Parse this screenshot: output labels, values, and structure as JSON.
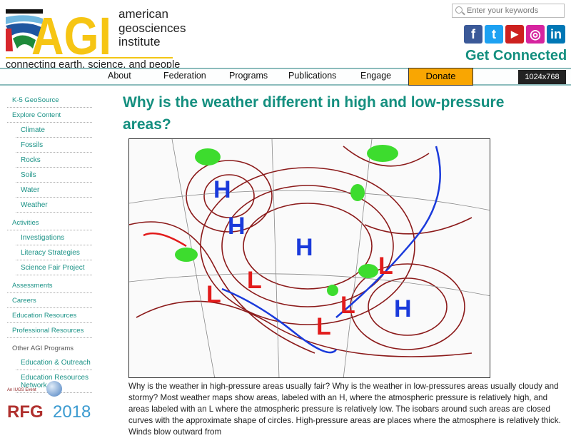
{
  "logo": {
    "letters": "AGI",
    "name_lines": [
      "american",
      "geosciences",
      "institute"
    ],
    "tagline": "connecting earth, science, and people"
  },
  "search": {
    "placeholder": "Enter your keywords"
  },
  "social": [
    {
      "name": "facebook",
      "glyph": "f",
      "color": "#3b5998"
    },
    {
      "name": "twitter",
      "glyph": "t",
      "color": "#1da1f2"
    },
    {
      "name": "youtube",
      "glyph": "▶",
      "color": "#cd201f"
    },
    {
      "name": "instagram",
      "glyph": "◎",
      "color": "#d6249f"
    },
    {
      "name": "linkedin",
      "glyph": "in",
      "color": "#0077b5"
    }
  ],
  "get_connected": "Get Connected",
  "nav": {
    "items": [
      "About",
      "Federation",
      "Programs",
      "Publications",
      "Engage"
    ],
    "donate": "Donate"
  },
  "sidebar": [
    {
      "label": "K-5 GeoSource",
      "level": 0
    },
    {
      "label": "Explore Content",
      "level": 0
    },
    {
      "label": "Climate",
      "level": 1
    },
    {
      "label": "Fossils",
      "level": 1
    },
    {
      "label": "Rocks",
      "level": 1
    },
    {
      "label": "Soils",
      "level": 1
    },
    {
      "label": "Water",
      "level": 1
    },
    {
      "label": "Weather",
      "level": 1
    },
    {
      "label": "Activities",
      "level": 0
    },
    {
      "label": "Investigations",
      "level": 1
    },
    {
      "label": "Literacy Strategies",
      "level": 1
    },
    {
      "label": "Science Fair Project",
      "level": 1
    },
    {
      "label": "Assessments",
      "level": 0
    },
    {
      "label": "Careers",
      "level": 0
    },
    {
      "label": "Education Resources",
      "level": 0
    },
    {
      "label": "Professional Resources",
      "level": 0
    },
    {
      "label": "Other AGI Programs",
      "level": 0,
      "heading": true
    },
    {
      "label": "Education & Outreach",
      "level": 1
    },
    {
      "label": "Education Resources Network",
      "level": 1
    }
  ],
  "title": "Why is the weather different in high and low-pressure areas?",
  "map_labels": {
    "high": "H",
    "low": "L",
    "high_color": "#1a3adb",
    "low_color": "#e21b1b"
  },
  "body_text": "Why is the weather in high-pressure areas usually fair? Why is the weather in low-pressures areas usually cloudy and stormy? Most weather maps show areas, labeled with an H, where the atmospheric pressure is relatively high, and areas labeled with an L where the atmospheric pressure is relatively low. The isobars around such areas are closed curves with the approximate shape of circles. High-pressure areas are places where the atmosphere is relatively thick. Winds blow outward from",
  "rfg": {
    "event": "An IUGS Event",
    "brand": "RFG",
    "year": "2018"
  },
  "resolution_badge": "1024x768"
}
